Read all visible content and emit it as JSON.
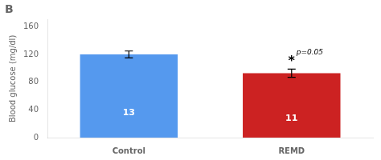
{
  "chart_data": {
    "type": "bar",
    "title": "B",
    "categories": [
      "Control",
      "REMD"
    ],
    "values": [
      120,
      93
    ],
    "errors": [
      5,
      6
    ],
    "n_labels": [
      "13",
      "11"
    ],
    "colors": [
      "#5599ee",
      "#cc2222"
    ],
    "ylabel": "Blood glucose (mg/dl)",
    "ylim": [
      0,
      170
    ],
    "yticks": [
      0,
      40,
      80,
      120,
      160
    ],
    "grid": false,
    "legend": false,
    "annotations": [
      {
        "category": "REMD",
        "text": "*"
      },
      {
        "category": "REMD",
        "text": "p=0.05"
      }
    ]
  }
}
